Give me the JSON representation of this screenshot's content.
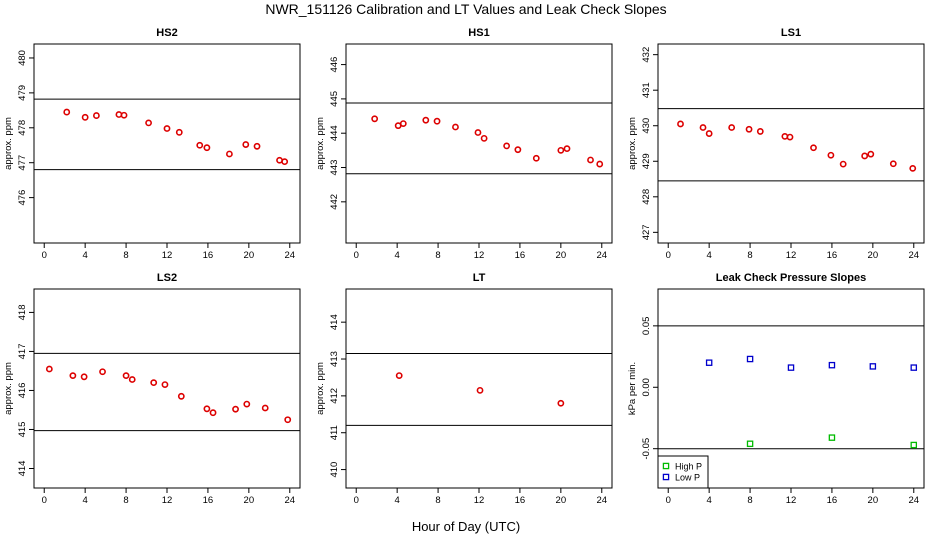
{
  "figure": {
    "title": "NWR_151126  Calibration and LT Values and Leak Check Slopes",
    "xlabel": "Hour of Day (UTC)"
  },
  "chart_data": [
    {
      "id": "hs2",
      "type": "scatter",
      "title": "HS2",
      "ylabel": "approx. ppm",
      "xlim": [
        -1,
        25
      ],
      "ylim": [
        474.7,
        480.4
      ],
      "xticks": [
        0,
        4,
        8,
        12,
        16,
        20,
        24
      ],
      "yticks": [
        476,
        477,
        478,
        479,
        480
      ],
      "hlines": [
        478.82,
        476.8
      ],
      "color": "#dd0000",
      "x": [
        2.2,
        4.0,
        5.1,
        7.3,
        7.8,
        10.2,
        12.0,
        13.2,
        15.2,
        15.9,
        18.1,
        19.7,
        20.8,
        23.0,
        23.5
      ],
      "y": [
        478.45,
        478.3,
        478.35,
        478.38,
        478.36,
        478.14,
        477.98,
        477.87,
        477.5,
        477.43,
        477.25,
        477.52,
        477.47,
        477.07,
        477.03
      ]
    },
    {
      "id": "hs1",
      "type": "scatter",
      "title": "HS1",
      "ylabel": "approx. ppm",
      "xlim": [
        -1,
        25
      ],
      "ylim": [
        440.8,
        446.6
      ],
      "xticks": [
        0,
        4,
        8,
        12,
        16,
        20,
        24
      ],
      "yticks": [
        442,
        443,
        444,
        445,
        446
      ],
      "hlines": [
        444.88,
        442.82
      ],
      "color": "#dd0000",
      "x": [
        1.8,
        4.1,
        4.6,
        6.8,
        7.9,
        9.7,
        11.9,
        12.5,
        14.7,
        15.8,
        17.6,
        20.0,
        20.6,
        22.9,
        23.8
      ],
      "y": [
        444.42,
        444.22,
        444.28,
        444.38,
        444.35,
        444.18,
        444.02,
        443.85,
        443.63,
        443.52,
        443.27,
        443.5,
        443.55,
        443.22,
        443.1
      ]
    },
    {
      "id": "ls1",
      "type": "scatter",
      "title": "LS1",
      "ylabel": "approx. ppm",
      "xlim": [
        -1,
        25
      ],
      "ylim": [
        426.7,
        432.3
      ],
      "xticks": [
        0,
        4,
        8,
        12,
        16,
        20,
        24
      ],
      "yticks": [
        427,
        428,
        429,
        430,
        431,
        432
      ],
      "hlines": [
        430.48,
        428.45
      ],
      "color": "#dd0000",
      "x": [
        1.2,
        3.4,
        4.0,
        6.2,
        7.9,
        9.0,
        11.4,
        11.9,
        14.2,
        15.9,
        17.1,
        19.2,
        19.8,
        22.0,
        23.9
      ],
      "y": [
        430.05,
        429.95,
        429.78,
        429.95,
        429.9,
        429.84,
        429.7,
        429.68,
        429.38,
        429.17,
        428.92,
        429.15,
        429.2,
        428.93,
        428.8
      ]
    },
    {
      "id": "ls2",
      "type": "scatter",
      "title": "LS2",
      "ylabel": "approx. ppm",
      "xlim": [
        -1,
        25
      ],
      "ylim": [
        413.5,
        418.6
      ],
      "xticks": [
        0,
        4,
        8,
        12,
        16,
        20,
        24
      ],
      "yticks": [
        414,
        415,
        416,
        417,
        418
      ],
      "hlines": [
        416.95,
        414.97
      ],
      "color": "#dd0000",
      "x": [
        0.5,
        2.8,
        3.9,
        5.7,
        8.0,
        8.6,
        10.7,
        11.8,
        13.4,
        15.9,
        16.5,
        18.7,
        19.8,
        21.6,
        23.8
      ],
      "y": [
        416.55,
        416.38,
        416.35,
        416.48,
        416.38,
        416.28,
        416.2,
        416.15,
        415.85,
        415.53,
        415.43,
        415.52,
        415.65,
        415.55,
        415.25
      ]
    },
    {
      "id": "lt",
      "type": "scatter",
      "title": "LT",
      "ylabel": "approx. ppm",
      "xlim": [
        -1,
        25
      ],
      "ylim": [
        409.5,
        414.9
      ],
      "xticks": [
        0,
        4,
        8,
        12,
        16,
        20,
        24
      ],
      "yticks": [
        410,
        411,
        412,
        413,
        414
      ],
      "hlines": [
        413.15,
        411.2
      ],
      "color": "#dd0000",
      "x": [
        4.2,
        12.1,
        20.0
      ],
      "y": [
        412.55,
        412.15,
        411.8
      ]
    },
    {
      "id": "leak",
      "type": "scatter",
      "title": "Leak Check Pressure Slopes",
      "ylabel": "kPa per min.",
      "xlim": [
        -1,
        25
      ],
      "ylim": [
        -0.082,
        0.08
      ],
      "xticks": [
        0,
        4,
        8,
        12,
        16,
        20,
        24
      ],
      "yticks": [
        -0.05,
        0.0,
        0.05
      ],
      "ytick_labels": [
        "-0.05",
        "0.00",
        "0.05"
      ],
      "hlines": [
        0.05,
        -0.05
      ],
      "series": [
        {
          "name": "High P",
          "color": "#00bb00",
          "x": [
            8.0,
            16.0,
            24.0
          ],
          "y": [
            -0.046,
            -0.041,
            -0.047
          ]
        },
        {
          "name": "Low P",
          "color": "#0000cc",
          "x": [
            4.0,
            8.0,
            12.0,
            16.0,
            20.0,
            24.0
          ],
          "y": [
            0.02,
            0.023,
            0.016,
            0.018,
            0.017,
            0.016
          ]
        }
      ],
      "legend": {
        "position": "bottom-left",
        "entries": [
          "High P",
          "Low P"
        ]
      }
    }
  ]
}
